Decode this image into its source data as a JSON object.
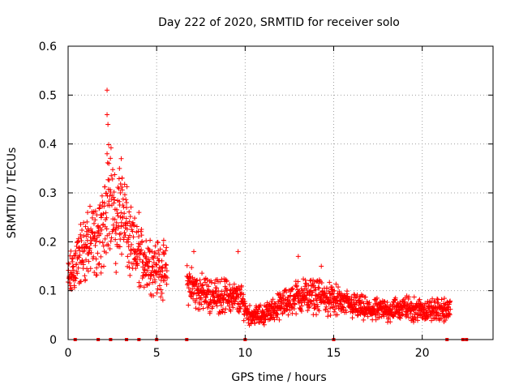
{
  "chart_data": {
    "type": "scatter",
    "title": "Day 222 of 2020, SRMTID for receiver solo",
    "xlabel": "GPS time / hours",
    "ylabel": "SRMTID / TECUs",
    "xlim": [
      0,
      24
    ],
    "ylim": [
      0,
      0.6
    ],
    "xticks": [
      0,
      5,
      10,
      15,
      20
    ],
    "yticks": [
      0,
      0.1,
      0.2,
      0.3,
      0.4,
      0.5,
      0.6
    ],
    "xtick_labels": [
      "0",
      "5",
      "10",
      "15",
      "20"
    ],
    "ytick_labels": [
      "0",
      "0.1",
      "0.2",
      "0.3",
      "0.4",
      "0.5",
      "0.6"
    ],
    "grid": true,
    "marker": "+",
    "color": "#ff0000",
    "series": [
      {
        "name": "SRMTID",
        "trend": [
          {
            "x": 0.0,
            "y": 0.12
          },
          {
            "x": 0.5,
            "y": 0.16
          },
          {
            "x": 1.0,
            "y": 0.19
          },
          {
            "x": 1.5,
            "y": 0.2
          },
          {
            "x": 2.0,
            "y": 0.22
          },
          {
            "x": 2.3,
            "y": 0.33
          },
          {
            "x": 2.7,
            "y": 0.22
          },
          {
            "x": 3.0,
            "y": 0.28
          },
          {
            "x": 3.5,
            "y": 0.19
          },
          {
            "x": 4.0,
            "y": 0.17
          },
          {
            "x": 4.5,
            "y": 0.16
          },
          {
            "x": 5.0,
            "y": 0.15
          },
          {
            "x": 5.5,
            "y": 0.14
          },
          {
            "x": 6.7,
            "y": 0.12
          },
          {
            "x": 7.2,
            "y": 0.1
          },
          {
            "x": 8.0,
            "y": 0.09
          },
          {
            "x": 9.0,
            "y": 0.09
          },
          {
            "x": 9.8,
            "y": 0.08
          },
          {
            "x": 10.2,
            "y": 0.05
          },
          {
            "x": 11.0,
            "y": 0.05
          },
          {
            "x": 12.0,
            "y": 0.07
          },
          {
            "x": 13.0,
            "y": 0.09
          },
          {
            "x": 14.0,
            "y": 0.09
          },
          {
            "x": 15.0,
            "y": 0.08
          },
          {
            "x": 16.0,
            "y": 0.07
          },
          {
            "x": 17.0,
            "y": 0.06
          },
          {
            "x": 18.0,
            "y": 0.06
          },
          {
            "x": 19.0,
            "y": 0.065
          },
          {
            "x": 20.0,
            "y": 0.06
          },
          {
            "x": 21.0,
            "y": 0.06
          },
          {
            "x": 21.6,
            "y": 0.06
          }
        ],
        "peaks": [
          {
            "x": 2.2,
            "y": 0.51
          },
          {
            "x": 2.2,
            "y": 0.46
          },
          {
            "x": 2.25,
            "y": 0.44
          },
          {
            "x": 2.2,
            "y": 0.38
          },
          {
            "x": 2.3,
            "y": 0.36
          },
          {
            "x": 2.9,
            "y": 0.35
          },
          {
            "x": 3.0,
            "y": 0.37
          },
          {
            "x": 3.05,
            "y": 0.33
          },
          {
            "x": 2.95,
            "y": 0.3
          },
          {
            "x": 3.3,
            "y": 0.27
          },
          {
            "x": 4.0,
            "y": 0.26
          },
          {
            "x": 1.1,
            "y": 0.26
          },
          {
            "x": 13.0,
            "y": 0.17
          },
          {
            "x": 9.6,
            "y": 0.18
          },
          {
            "x": 7.1,
            "y": 0.18
          },
          {
            "x": 14.3,
            "y": 0.15
          }
        ],
        "gaps": [
          [
            5.6,
            6.7
          ]
        ]
      }
    ],
    "zero_markers_x": [
      0.4,
      1.7,
      2.4,
      3.3,
      4.0,
      5.0,
      6.7,
      10.0,
      15.0,
      21.4,
      22.3,
      22.5
    ]
  }
}
